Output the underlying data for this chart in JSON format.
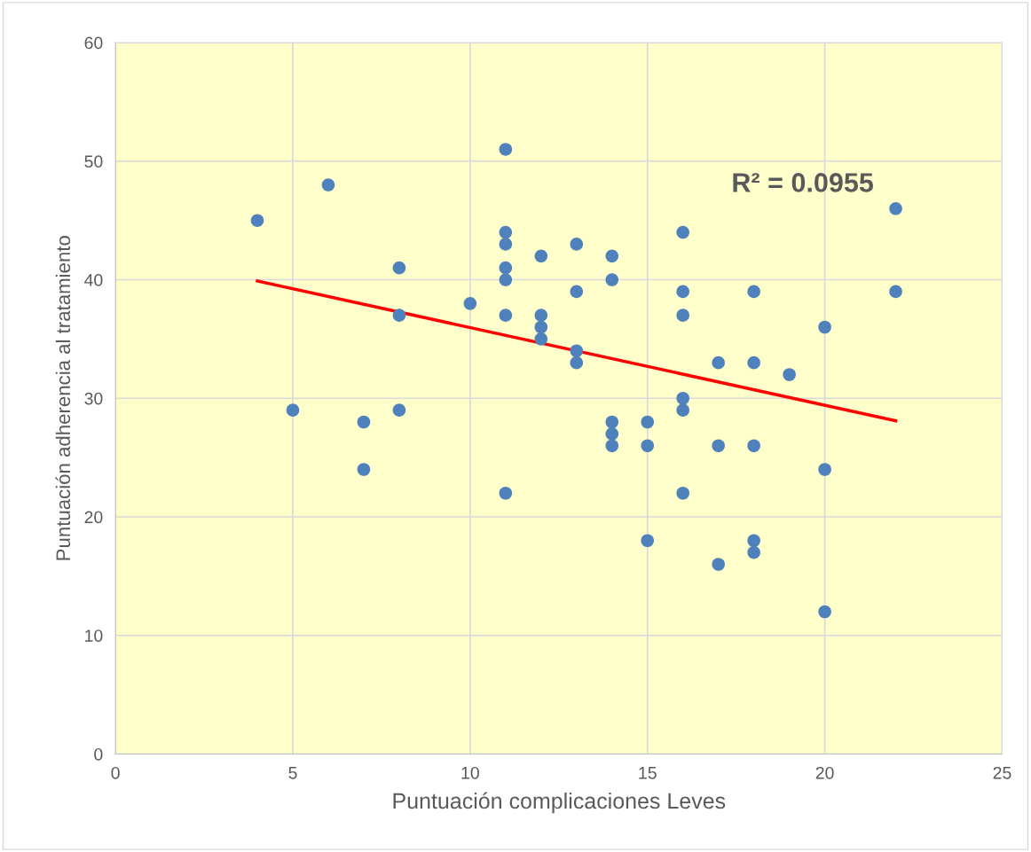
{
  "chart_data": {
    "type": "scatter",
    "xlabel": "Puntuación complicaciones Leves",
    "ylabel": "Puntuación adherencia al tratamiento",
    "xlim": [
      0,
      25
    ],
    "xticks": [
      0,
      5,
      10,
      15,
      20,
      25
    ],
    "ylim": [
      0,
      60
    ],
    "yticks": [
      0,
      10,
      20,
      30,
      40,
      50,
      60
    ],
    "grid": true,
    "marker": "circle",
    "annotations": [
      "R² = 0.0955"
    ],
    "series": [
      {
        "color": "#4f81bd",
        "x": [
          4,
          5,
          6,
          7,
          7,
          8,
          8,
          8,
          10,
          11,
          11,
          11,
          11,
          11,
          11,
          11,
          12,
          12,
          12,
          12,
          13,
          13,
          13,
          13,
          14,
          14,
          14,
          14,
          14,
          15,
          15,
          15,
          16,
          16,
          16,
          16,
          16,
          16,
          17,
          17,
          17,
          18,
          18,
          18,
          18,
          18,
          19,
          20,
          20,
          20,
          22,
          22
        ],
        "values": [
          45,
          29,
          48,
          28,
          24,
          41,
          37,
          29,
          38,
          51,
          44,
          43,
          41,
          40,
          37,
          22,
          42,
          37,
          36,
          35,
          43,
          39,
          34,
          33,
          42,
          40,
          28,
          27,
          26,
          28,
          26,
          18,
          44,
          39,
          37,
          30,
          29,
          22,
          33,
          26,
          16,
          39,
          33,
          26,
          18,
          17,
          32,
          36,
          24,
          12,
          46,
          39
        ]
      },
      {
        "type": "line",
        "color": "#ff0000",
        "x": [
          4,
          22
        ],
        "values": [
          39.9,
          28.1
        ],
        "marker": "none",
        "line_style": "solid"
      }
    ]
  }
}
